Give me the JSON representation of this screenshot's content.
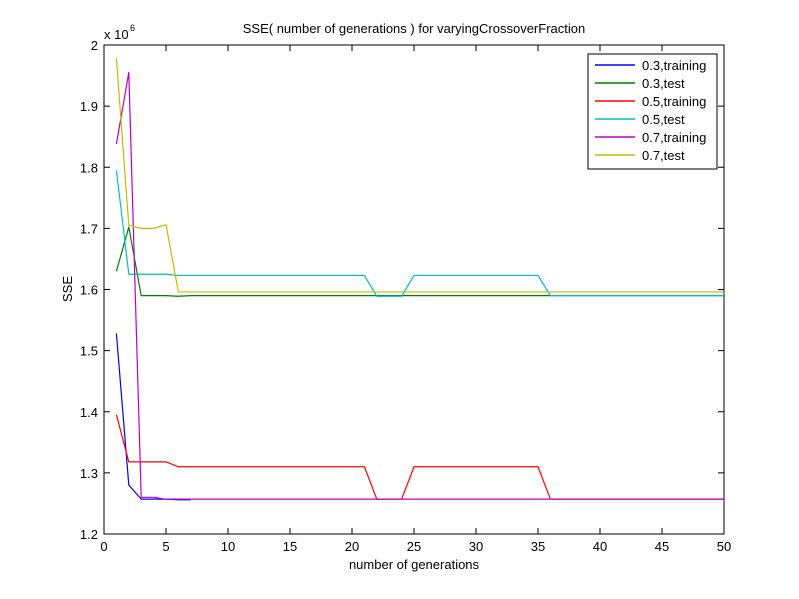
{
  "chart_data": {
    "type": "line",
    "title": "SSE( number of generations ) for varyingCrossoverFraction",
    "xlabel": "number of generations",
    "ylabel": "SSE",
    "y_multiplier_label": "x 10",
    "y_multiplier_exponent": "6",
    "xlim": [
      0,
      50
    ],
    "ylim": [
      1.2,
      2.0
    ],
    "xticks": [
      "0",
      "5",
      "10",
      "15",
      "20",
      "25",
      "30",
      "35",
      "40",
      "45",
      "50"
    ],
    "yticks": [
      "1.2",
      "1.3",
      "1.4",
      "1.5",
      "1.6",
      "1.7",
      "1.8",
      "1.9",
      "2"
    ],
    "legend_position": "top-right",
    "grid": false,
    "series": [
      {
        "name": "0.3,training",
        "color": "#0000ff",
        "points": [
          [
            1,
            1.528
          ],
          [
            2,
            1.28
          ],
          [
            3,
            1.257
          ],
          [
            4,
            1.257
          ],
          [
            5,
            1.257
          ],
          [
            6,
            1.256
          ],
          [
            7,
            1.256
          ]
        ]
      },
      {
        "name": "0.3,test",
        "color": "#008000",
        "points": [
          [
            1,
            1.63
          ],
          [
            2,
            1.702
          ],
          [
            3,
            1.59
          ],
          [
            4,
            1.59
          ],
          [
            5,
            1.59
          ],
          [
            6,
            1.589
          ],
          [
            7,
            1.59
          ],
          [
            50,
            1.59
          ]
        ]
      },
      {
        "name": "0.5,training",
        "color": "#ff0000",
        "points": [
          [
            1,
            1.395
          ],
          [
            2,
            1.318
          ],
          [
            3,
            1.318
          ],
          [
            4,
            1.318
          ],
          [
            5,
            1.318
          ],
          [
            6,
            1.31
          ],
          [
            21,
            1.31
          ],
          [
            22,
            1.257
          ],
          [
            24,
            1.257
          ],
          [
            25,
            1.31
          ],
          [
            35,
            1.31
          ],
          [
            36,
            1.257
          ],
          [
            50,
            1.257
          ]
        ]
      },
      {
        "name": "0.5,test",
        "color": "#00bfbf",
        "points": [
          [
            1,
            1.795
          ],
          [
            2,
            1.625
          ],
          [
            5,
            1.625
          ],
          [
            6,
            1.623
          ],
          [
            21,
            1.623
          ],
          [
            22,
            1.589
          ],
          [
            24,
            1.589
          ],
          [
            25,
            1.623
          ],
          [
            35,
            1.623
          ],
          [
            36,
            1.59
          ],
          [
            50,
            1.59
          ]
        ]
      },
      {
        "name": "0.7,training",
        "color": "#bf00bf",
        "points": [
          [
            1,
            1.838
          ],
          [
            2,
            1.955
          ],
          [
            3,
            1.26
          ],
          [
            4,
            1.26
          ],
          [
            5,
            1.257
          ],
          [
            6,
            1.257
          ],
          [
            50,
            1.257
          ]
        ]
      },
      {
        "name": "0.7,test",
        "color": "#bfbf00",
        "points": [
          [
            1,
            1.978
          ],
          [
            2,
            1.705
          ],
          [
            3,
            1.7
          ],
          [
            4,
            1.7
          ],
          [
            5,
            1.706
          ],
          [
            6,
            1.596
          ],
          [
            50,
            1.596
          ]
        ]
      }
    ]
  }
}
